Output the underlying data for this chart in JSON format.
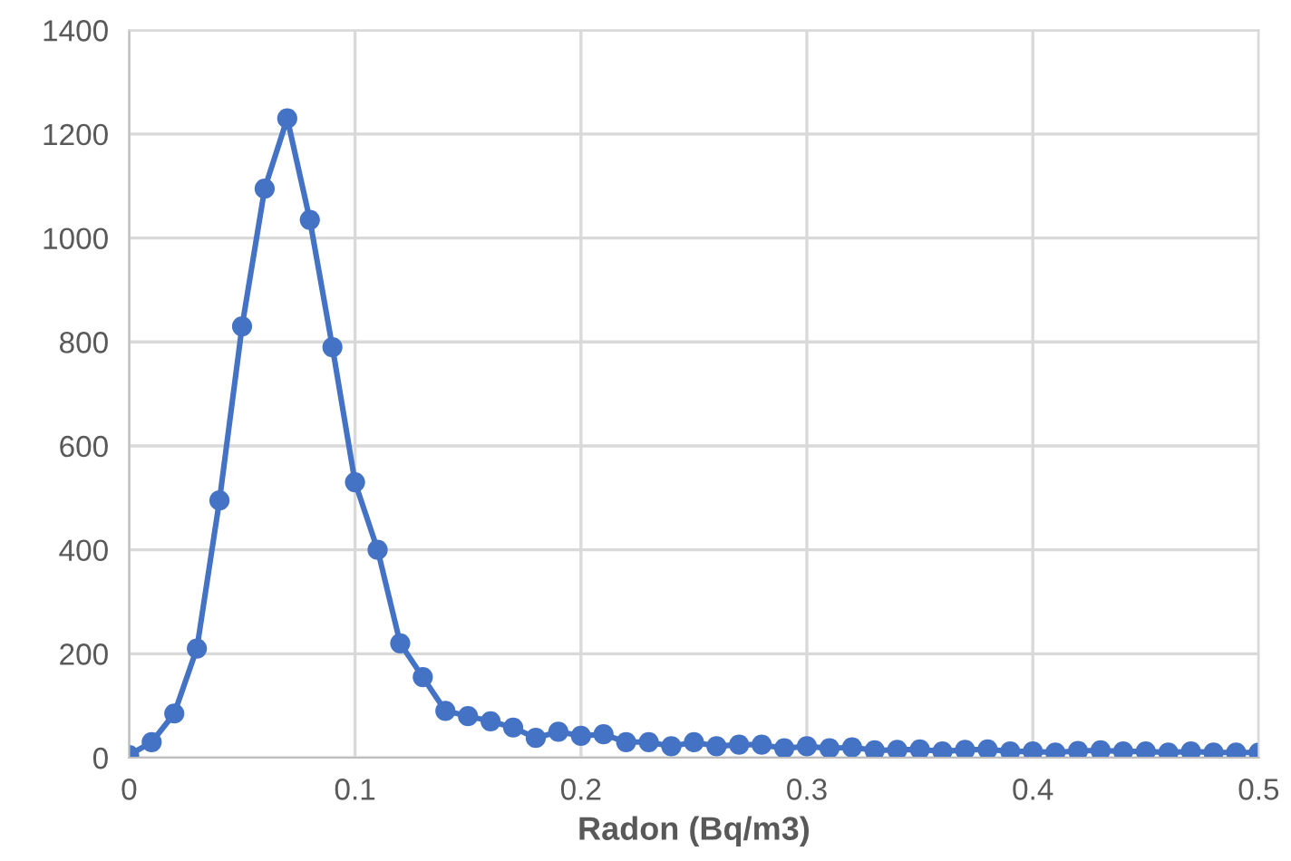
{
  "chart_data": {
    "type": "line",
    "xlabel": "Radon (Bq/m3)",
    "x": [
      0,
      0.01,
      0.02,
      0.03,
      0.04,
      0.05,
      0.06,
      0.07,
      0.08,
      0.09,
      0.1,
      0.11,
      0.12,
      0.13,
      0.14,
      0.15,
      0.16,
      0.17,
      0.18,
      0.19,
      0.2,
      0.21,
      0.22,
      0.23,
      0.24,
      0.25,
      0.26,
      0.27,
      0.28,
      0.29,
      0.3,
      0.31,
      0.32,
      0.33,
      0.34,
      0.35,
      0.36,
      0.37,
      0.38,
      0.39,
      0.4,
      0.41,
      0.42,
      0.43,
      0.44,
      0.45,
      0.46,
      0.47,
      0.48,
      0.49,
      0.5
    ],
    "series": [
      {
        "color": "#4472c4",
        "values": [
          5,
          30,
          85,
          210,
          495,
          830,
          1095,
          1230,
          1035,
          790,
          530,
          400,
          220,
          155,
          90,
          80,
          70,
          58,
          38,
          50,
          42,
          45,
          30,
          30,
          22,
          30,
          22,
          25,
          25,
          18,
          22,
          18,
          20,
          14,
          15,
          16,
          12,
          15,
          16,
          12,
          12,
          10,
          13,
          14,
          12,
          12,
          10,
          12,
          10,
          10,
          10
        ]
      }
    ],
    "xlim": [
      0,
      0.5
    ],
    "xticks": [
      0,
      0.1,
      0.2,
      0.3,
      0.4,
      0.5
    ],
    "ylim": [
      0,
      1400
    ],
    "yticks": [
      0,
      200,
      400,
      600,
      800,
      1000,
      1200,
      1400
    ],
    "grid": true,
    "marker": "circle",
    "line_style": "solid",
    "legend": false
  }
}
